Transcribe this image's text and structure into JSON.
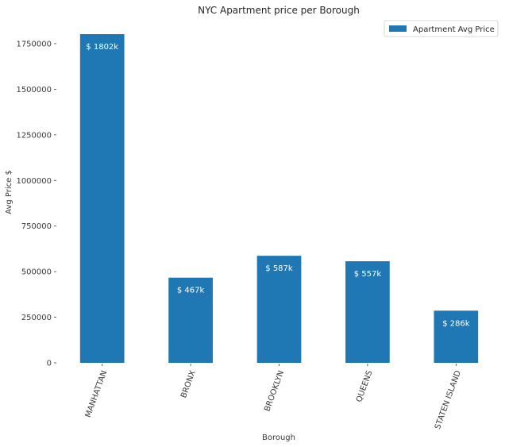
{
  "chart_data": {
    "type": "bar",
    "title": "NYC Apartment price per Borough",
    "xlabel": "Borough",
    "ylabel": "Avg Price $",
    "categories": [
      "MANHATTAN",
      "BRONX",
      "BROOKLYN",
      "QUEENS",
      "STATEN ISLAND"
    ],
    "series": [
      {
        "name": "Apartment Avg Price",
        "values": [
          1802000,
          467000,
          587000,
          557000,
          286000
        ],
        "data_labels": [
          "$ 1802k",
          "$ 467k",
          "$ 587k",
          "$ 557k",
          "$ 286k"
        ],
        "color": "#1f77b4"
      }
    ],
    "yticks": [
      0,
      250000,
      500000,
      750000,
      1000000,
      1250000,
      1500000,
      1750000
    ],
    "ylim": [
      0,
      1802000
    ],
    "grid": false,
    "legend": "top-right",
    "xtick_rotation": -70
  }
}
